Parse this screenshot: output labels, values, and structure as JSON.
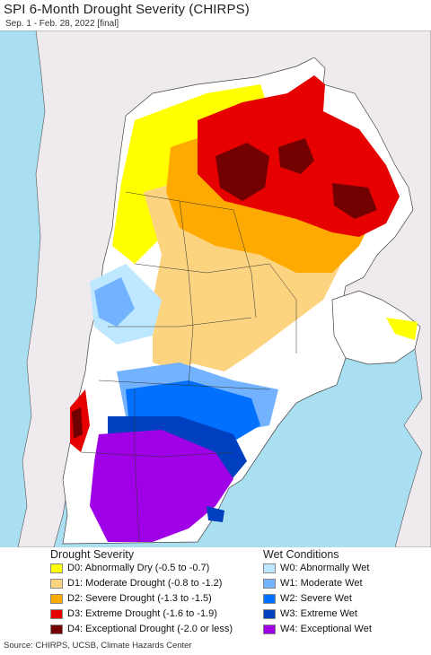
{
  "title": "SPI 6-Month Drought Severity (CHIRPS)",
  "subtitle": "Sep. 1 - Feb. 28, 2022 [final]",
  "legend": {
    "drought_heading": "Drought Severity",
    "wet_heading": "Wet Conditions",
    "drought": [
      {
        "label": "D0: Abnormally Dry (-0.5 to -0.7)",
        "color": "#ffff00"
      },
      {
        "label": "D1: Moderate Drought (-0.8 to -1.2)",
        "color": "#fcd37f"
      },
      {
        "label": "D2: Severe Drought (-1.3 to -1.5)",
        "color": "#ffaa00"
      },
      {
        "label": "D3: Extreme Drought (-1.6 to -1.9)",
        "color": "#e60000"
      },
      {
        "label": "D4: Exceptional Drought (-2.0 or less)",
        "color": "#730000"
      }
    ],
    "wet": [
      {
        "label": "W0: Abnormally Wet",
        "color": "#bee8ff"
      },
      {
        "label": "W1: Moderate Wet",
        "color": "#73b2ff"
      },
      {
        "label": "W2: Severe Wet",
        "color": "#0070ff"
      },
      {
        "label": "W3: Extreme Wet",
        "color": "#0040c0"
      },
      {
        "label": "W4: Exceptional Wet",
        "color": "#a000e6"
      }
    ]
  },
  "colors": {
    "ocean": "#aadff2",
    "land_outside": "#eeeaee",
    "border": "#333333"
  },
  "source": "Source: CHIRPS, UCSB, Climate Hazards Center"
}
